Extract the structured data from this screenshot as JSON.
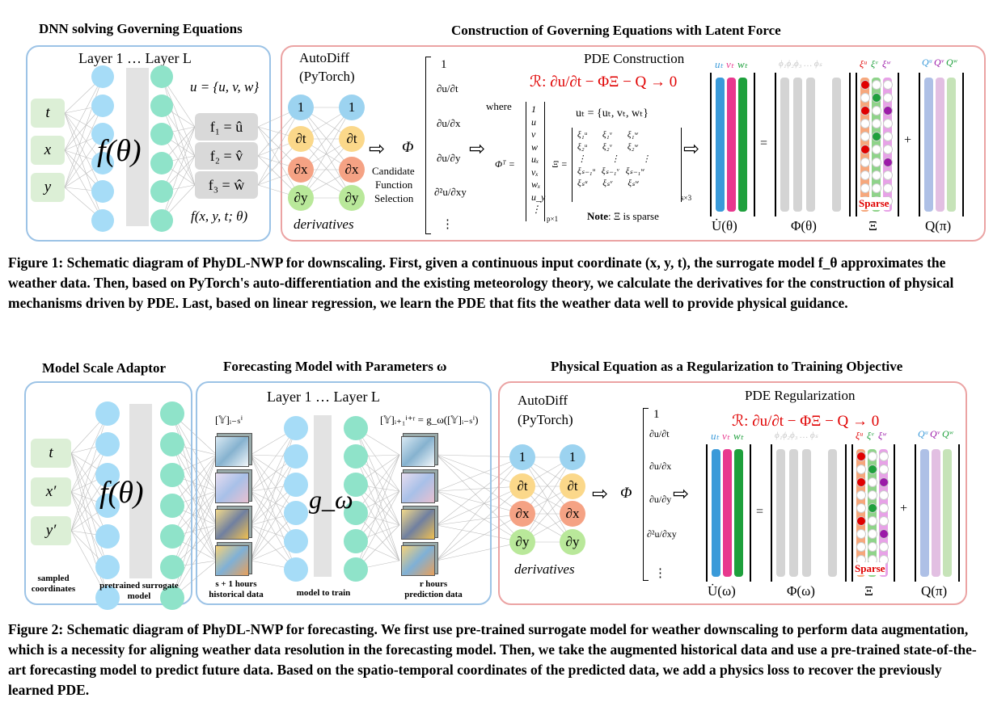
{
  "fig1": {
    "title_left": "DNN solving Governing Equations",
    "title_right": "Construction of Governing Equations with Latent Force",
    "layer_label": "Layer 1 … Layer L",
    "inputs": [
      "t",
      "x",
      "y"
    ],
    "net": "f(θ)",
    "u_def": "u = {u, v, w}",
    "outputs": [
      "f₁ = û",
      "f₂ = v̂",
      "f₃ = ŵ"
    ],
    "func": "f(x, y, t; θ)",
    "autodiff": "AutoDiff",
    "pytorch": "(PyTorch)",
    "deriv_nodes": [
      "1",
      "∂t",
      "∂x",
      "∂y"
    ],
    "derivatives": "derivatives",
    "phi": "Φ",
    "candidate": "Candidate",
    "function": "Function",
    "selection": "Selection",
    "phi_col": [
      "1",
      "∂u/∂t",
      "∂u/∂x",
      "∂u/∂y",
      "∂²u/∂xy",
      "⋮"
    ],
    "pde_construction": "PDE Construction",
    "pde_eq": "ℛ: ∂u/∂t − ΦΞ − Q → 0",
    "where": "where",
    "phi_t": "Φᵀ =",
    "phi_t_list": [
      "1",
      "u",
      "v",
      "w",
      "uₓ",
      "vₓ",
      "wₓ",
      "u_y",
      "⋮"
    ],
    "p_sub": "p×1",
    "ut_def": "uₜ = {uₜ, vₜ, wₜ}",
    "xi_eq": "Ξ =",
    "xi_sub": "s×3",
    "note": "Note",
    "note_text": ": Ξ is sparse",
    "udot_labels": [
      "uₜ",
      "vₜ",
      "wₜ"
    ],
    "phi_labels": "ϕ₁ϕ₂ϕ₃ … ϕₛ",
    "xi_labels": [
      "ξᵘ",
      "ξᵛ",
      "ξʷ"
    ],
    "q_labels": [
      "Qᵘ",
      "Qᵛ",
      "Qʷ"
    ],
    "sparse": "Sparse",
    "bottom_labels": [
      "U̇(θ)",
      "Φ(θ)",
      "Ξ",
      "Q(π)"
    ],
    "eq": "=",
    "plus": "+"
  },
  "caption1": "Figure 1: Schematic diagram of PhyDL-NWP for downscaling. First, given a continuous input coordinate (x, y, t), the surrogate model f_θ approximates the weather data. Then, based on PyTorch's auto-differentiation and the existing meteorology theory, we calculate the derivatives for the construction of physical mechanisms driven by PDE. Last, based on linear regression, we learn the PDE that fits the weather data well to provide physical guidance.",
  "fig2": {
    "title_a": "Model Scale Adaptor",
    "title_b": "Forecasting Model with Parameters ω",
    "title_c": "Physical Equation as a Regularization to Training Objective",
    "inputs": [
      "t",
      "x′",
      "y′"
    ],
    "net": "f(θ)",
    "sampled": "sampled coordinates",
    "pretrained": "pretrained surrogate model",
    "layer_label": "Layer 1 … Layer L",
    "hist_label": "[𝕐]ᵢ₋ₛⁱ",
    "pred_label": "[𝕐]ᵢ₊₁ⁱ⁺ʳ = g_ω([𝕐]ᵢ₋ₛⁱ)",
    "g": "g_ω",
    "hist_caption": "s + 1 hours historical data",
    "model_caption": "model to train",
    "pred_caption": "r hours prediction data",
    "autodiff": "AutoDiff",
    "pytorch": "(PyTorch)",
    "deriv_nodes": [
      "1",
      "∂t",
      "∂x",
      "∂y"
    ],
    "derivatives": "derivatives",
    "phi": "Φ",
    "phi_col": [
      "1",
      "∂u/∂t",
      "∂u/∂x",
      "∂u/∂y",
      "∂²u/∂xy",
      "⋮"
    ],
    "pde_reg": "PDE Regularization",
    "pde_eq": "ℛ: ∂u/∂t − ΦΞ − Q → 0",
    "sparse": "Sparse",
    "bottom_labels": [
      "U̇(ω)",
      "Φ(ω)",
      "Ξ",
      "Q(π)"
    ]
  },
  "caption2": "Figure 2: Schematic diagram of PhyDL-NWP for forecasting. We first use pre-trained surrogate model for weather downscaling to perform data augmentation, which is a necessity for aligning weather data resolution in the forecasting model. Then, we take the augmented historical data and use a pre-trained state-of-the-art forecasting model to predict future data. Based on the spatio-temporal coordinates of the predicted data, we add a physics loss to recover the previously learned PDE.",
  "colors": {
    "blue_border": "#9cc3e6",
    "red_border": "#eba3a3",
    "red_text": "#e00000",
    "u_bar": "#3a9ad9",
    "v_bar": "#e8388e",
    "w_bar": "#1ea03c"
  }
}
